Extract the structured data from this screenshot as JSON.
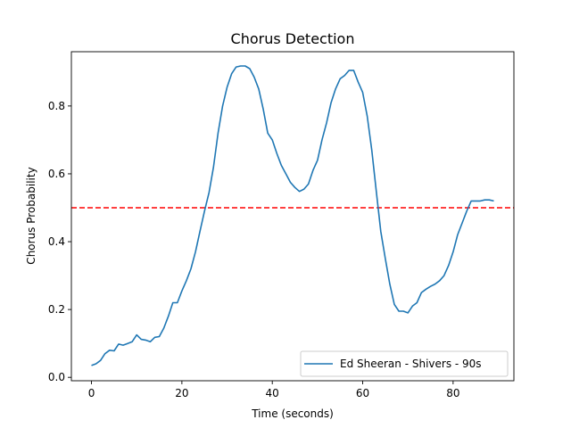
{
  "chart_data": {
    "type": "line",
    "title": "Chorus Detection",
    "xlabel": "Time (seconds)",
    "ylabel": "Chorus Probability",
    "xlim": [
      -4.45,
      93.45
    ],
    "ylim": [
      -0.01,
      0.96
    ],
    "xticks": [
      0,
      20,
      40,
      60,
      80
    ],
    "yticks": [
      0.0,
      0.2,
      0.4,
      0.6,
      0.8
    ],
    "xtick_labels": [
      "0",
      "20",
      "40",
      "60",
      "80"
    ],
    "ytick_labels": [
      "0.0",
      "0.2",
      "0.4",
      "0.6",
      "0.8"
    ],
    "grid": false,
    "legend_position": "lower-right",
    "threshold": {
      "y": 0.5,
      "color": "#ff0000",
      "style": "dashed"
    },
    "series": [
      {
        "name": "Ed Sheeran - Shivers - 90s",
        "color": "#1f77b4",
        "x": [
          0,
          1,
          2,
          3,
          4,
          5,
          6,
          7,
          8,
          9,
          10,
          11,
          12,
          13,
          14,
          15,
          16,
          17,
          18,
          19,
          20,
          21,
          22,
          23,
          24,
          25,
          26,
          27,
          28,
          29,
          30,
          31,
          32,
          33,
          34,
          35,
          36,
          37,
          38,
          39,
          40,
          41,
          42,
          43,
          44,
          45,
          46,
          47,
          48,
          49,
          50,
          51,
          52,
          53,
          54,
          55,
          56,
          57,
          58,
          59,
          60,
          61,
          62,
          63,
          64,
          65,
          66,
          67,
          68,
          69,
          70,
          71,
          72,
          73,
          74,
          75,
          76,
          77,
          78,
          79,
          80,
          81,
          82,
          83,
          84,
          85,
          86,
          87,
          88,
          89
        ],
        "y": [
          0.035,
          0.04,
          0.05,
          0.07,
          0.08,
          0.078,
          0.098,
          0.095,
          0.1,
          0.105,
          0.125,
          0.112,
          0.11,
          0.105,
          0.118,
          0.12,
          0.145,
          0.18,
          0.22,
          0.22,
          0.255,
          0.285,
          0.32,
          0.37,
          0.43,
          0.49,
          0.545,
          0.62,
          0.72,
          0.8,
          0.855,
          0.895,
          0.915,
          0.918,
          0.918,
          0.91,
          0.885,
          0.85,
          0.79,
          0.72,
          0.7,
          0.66,
          0.625,
          0.6,
          0.575,
          0.56,
          0.548,
          0.555,
          0.57,
          0.61,
          0.64,
          0.7,
          0.75,
          0.81,
          0.85,
          0.88,
          0.89,
          0.905,
          0.905,
          0.87,
          0.84,
          0.77,
          0.67,
          0.55,
          0.43,
          0.35,
          0.275,
          0.215,
          0.195,
          0.195,
          0.19,
          0.21,
          0.22,
          0.25,
          0.26,
          0.268,
          0.275,
          0.285,
          0.3,
          0.33,
          0.37,
          0.42,
          0.455,
          0.49,
          0.52,
          0.52,
          0.52,
          0.523,
          0.523,
          0.52
        ]
      }
    ]
  }
}
